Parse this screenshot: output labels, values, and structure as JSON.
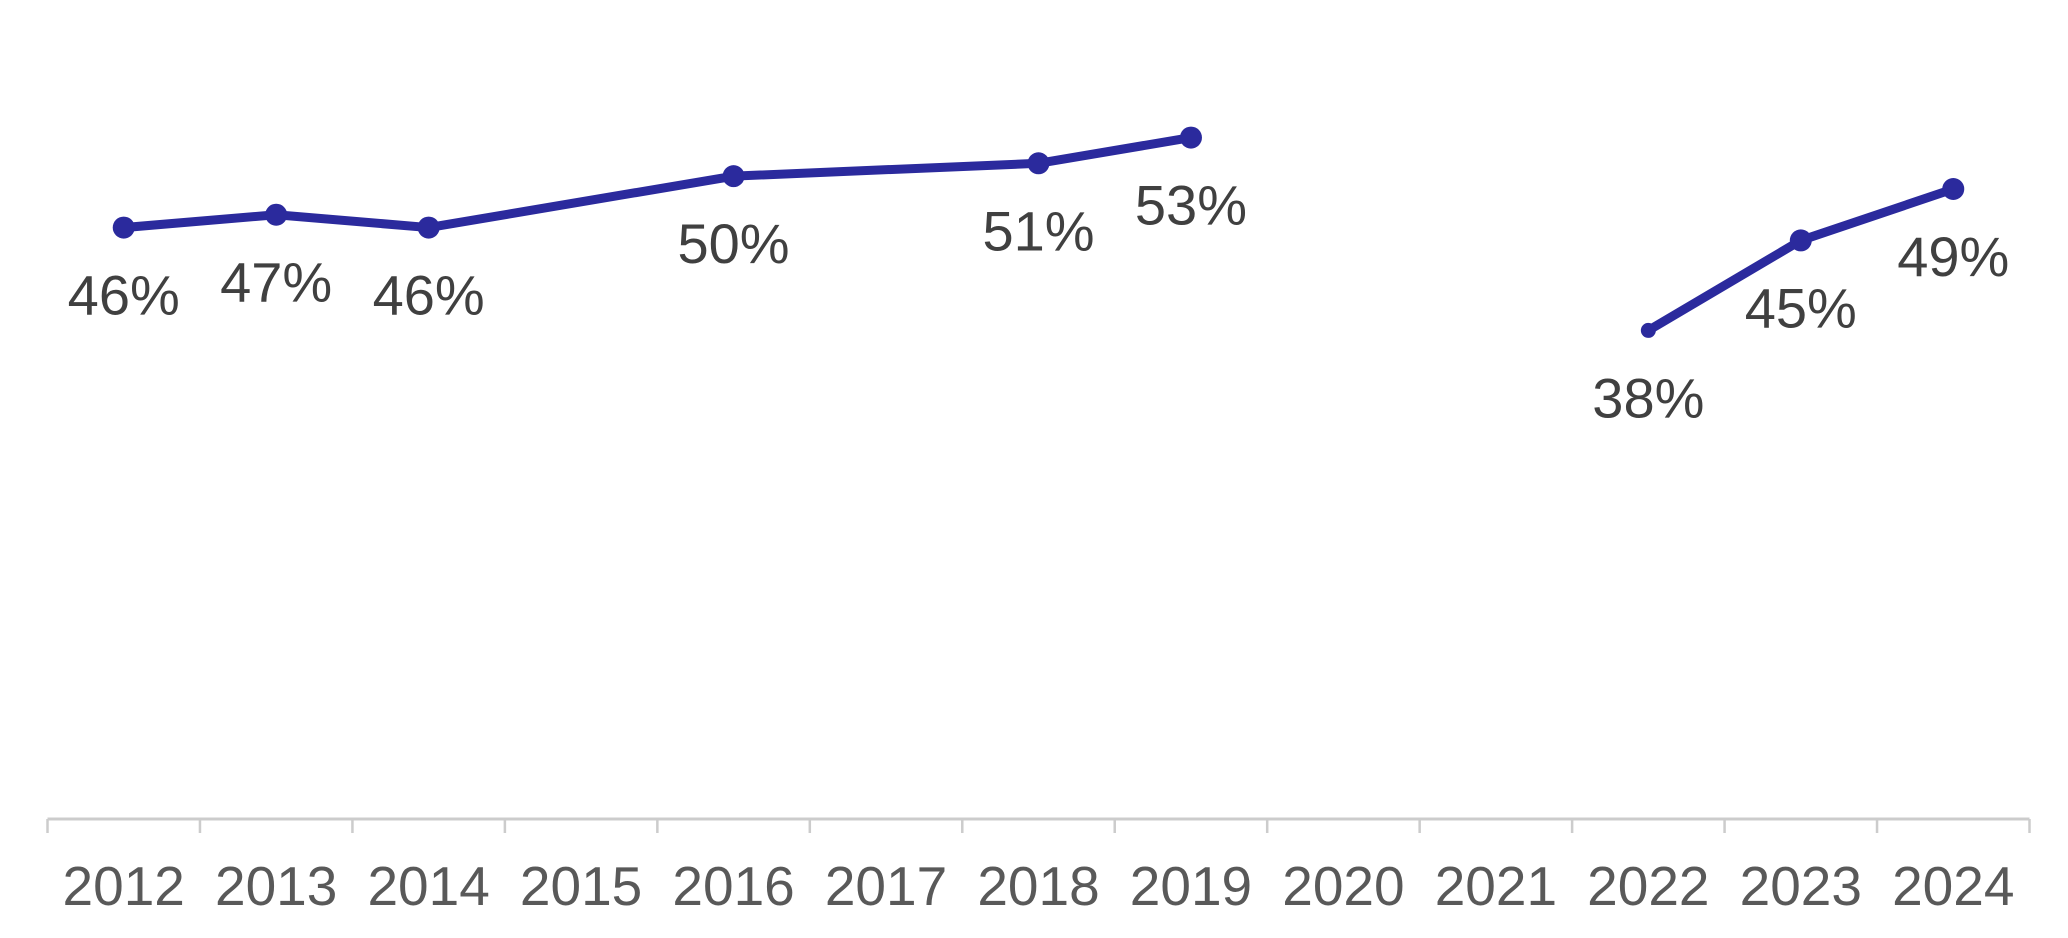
{
  "chart_data": {
    "type": "line",
    "title": "",
    "xlabel": "",
    "ylabel": "",
    "x_categories": [
      "2012",
      "2013",
      "2014",
      "2015",
      "2016",
      "2017",
      "2018",
      "2019",
      "2020",
      "2021",
      "2022",
      "2023",
      "2024"
    ],
    "ylim": [
      0,
      64
    ],
    "grid": false,
    "legend": "none",
    "series": [
      {
        "name": "percent-trend",
        "color": "#2b2a9d",
        "segments": [
          {
            "points": [
              {
                "year": "2012",
                "value": 46,
                "label": "46%"
              },
              {
                "year": "2013",
                "value": 47,
                "label": "47%"
              },
              {
                "year": "2014",
                "value": 46,
                "label": "46%"
              },
              {
                "year": "2016",
                "value": 50,
                "label": "50%"
              },
              {
                "year": "2018",
                "value": 51,
                "label": "51%"
              },
              {
                "year": "2019",
                "value": 53,
                "label": "53%"
              }
            ]
          },
          {
            "points": [
              {
                "year": "2022",
                "value": 38,
                "label": "38%",
                "marker": "small"
              },
              {
                "year": "2023",
                "value": 45,
                "label": "45%"
              },
              {
                "year": "2024",
                "value": 49,
                "label": "49%"
              }
            ]
          }
        ]
      }
    ]
  },
  "colors": {
    "line": "#2b2a9d",
    "value_label": "#404040",
    "axis_label": "#595959",
    "axis_line": "#cccccc",
    "background": "#ffffff"
  }
}
